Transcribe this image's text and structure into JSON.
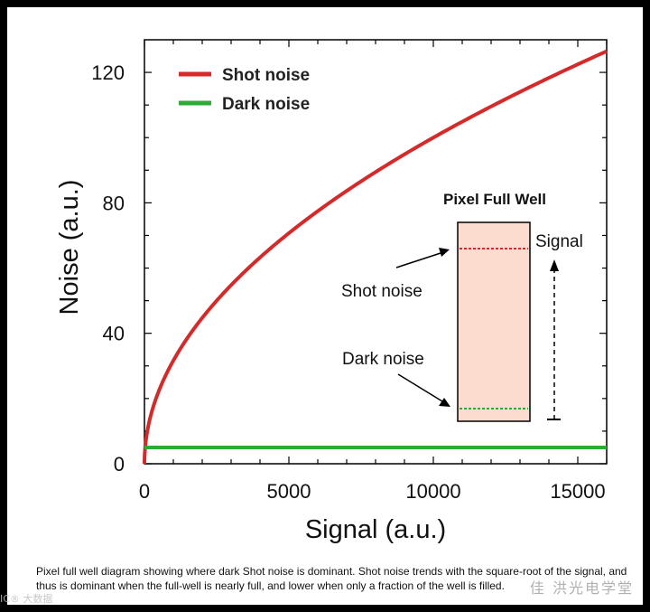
{
  "chart_data": {
    "type": "line",
    "xlabel": "Signal (a.u.)",
    "ylabel": "Noise (a.u.)",
    "xlim": [
      0,
      16000
    ],
    "ylim": [
      0,
      130
    ],
    "x_ticks": [
      0,
      5000,
      10000,
      15000
    ],
    "y_ticks": [
      0,
      40,
      80,
      120
    ],
    "grid": false,
    "legend_position": "top-left",
    "series": [
      {
        "name": "Shot noise",
        "color": "#d62a2a",
        "function": "sqrt",
        "x": [
          0,
          250,
          1000,
          2000,
          3000,
          4000,
          5000,
          6000,
          7000,
          8000,
          9000,
          10000,
          11000,
          12000,
          13000,
          14000,
          15000,
          16000
        ],
        "values": [
          0,
          15.8,
          31.6,
          44.7,
          54.8,
          63.2,
          70.7,
          77.5,
          83.7,
          89.4,
          94.9,
          100,
          104.9,
          109.5,
          114,
          118.3,
          122.5,
          126.5
        ]
      },
      {
        "name": "Dark noise",
        "color": "#2eab35",
        "x": [
          0,
          16000
        ],
        "values": [
          5,
          5
        ]
      }
    ],
    "inset": {
      "title": "Pixel Full Well",
      "fill": "#fbdccf",
      "labels": {
        "signal": "Signal",
        "shot_noise": "Shot noise",
        "dark_noise": "Dark noise"
      }
    }
  },
  "caption": "Pixel full well diagram showing where dark Shot noise is dominant. Shot noise trends with the square-root of the signal, and thus is dominant when the full-well is nearly full, and lower when only a fraction of the well is filled.",
  "watermark_right": "佳 洪光电学堂",
  "watermark_left": "IC® 大数据"
}
